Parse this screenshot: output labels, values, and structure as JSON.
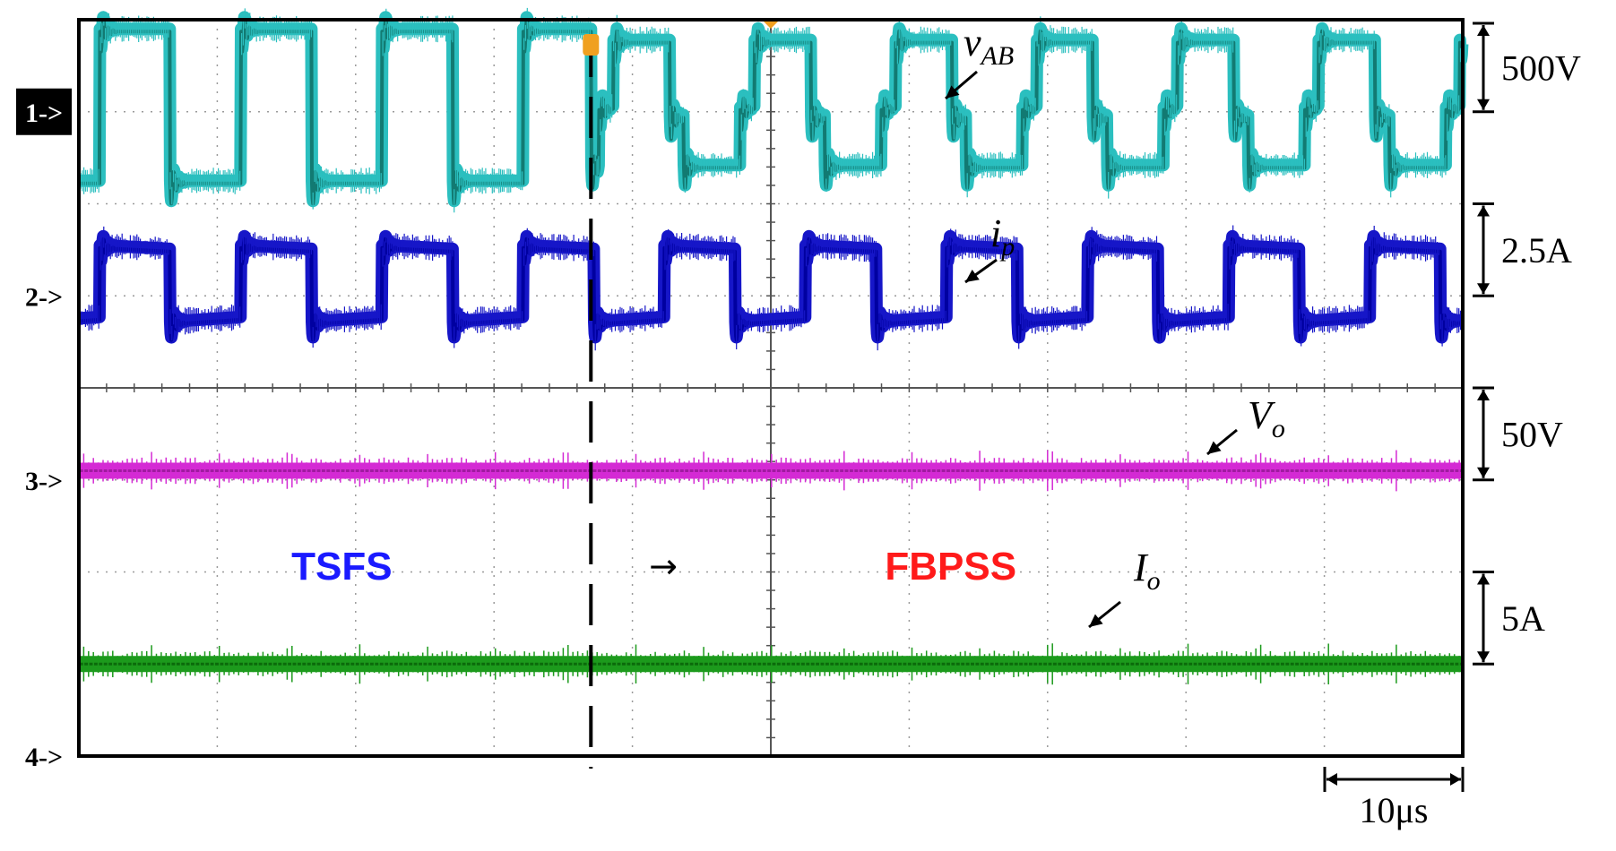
{
  "chart_data": {
    "type": "line",
    "title": "",
    "xlabel": "",
    "ylabel": "",
    "grid": true,
    "grid_divisions": {
      "x": 10,
      "y": 8
    },
    "time_per_div_us": 10,
    "time_scale_label": "10μs",
    "transition_time_us": 37,
    "x_range_us": [
      0,
      100
    ],
    "transition_arrow": "→",
    "modes": [
      {
        "label": "TSFS",
        "color": "#1a1aff",
        "center_us": 19
      },
      {
        "label": "FBPSS",
        "color": "#ff1a1a",
        "center_us": 63
      }
    ],
    "channels": [
      {
        "id": "1",
        "marker": "1->",
        "marker_style": "inverted",
        "center_div": 1.0,
        "color": "#2bbfbf",
        "dark_color": "#127a72",
        "name_main": "v",
        "name_sub": "AB",
        "scale_label": "500V",
        "scale_range_div": [
          0.0,
          1.0
        ],
        "type": "vAB",
        "period_us": 10.2
      },
      {
        "id": "2",
        "marker": "2->",
        "center_div": 3.0,
        "color": "#1616c8",
        "dark_color": "#0000a0",
        "name_main": "i",
        "name_sub": "p",
        "scale_label": "2.5A",
        "scale_range_div": [
          2.0,
          3.0
        ],
        "type": "ip",
        "period_us": 10.2
      },
      {
        "id": "3",
        "marker": "3->",
        "center_div": 5.0,
        "color": "#d42ad4",
        "dark_color": "#a01aa0",
        "name_main": "V",
        "name_sub": "o",
        "scale_label": "50V",
        "scale_range_div": [
          4.0,
          5.0
        ],
        "type": "dc",
        "level_div": 4.9
      },
      {
        "id": "4",
        "marker": "4->",
        "center_div": 8.0,
        "color": "#1c9a1c",
        "dark_color": "#0b6a0b",
        "name_main": "I",
        "name_sub": "o",
        "scale_label": "5A",
        "scale_range_div": [
          6.0,
          7.0
        ],
        "type": "dc",
        "level_div": 7.0
      }
    ]
  }
}
